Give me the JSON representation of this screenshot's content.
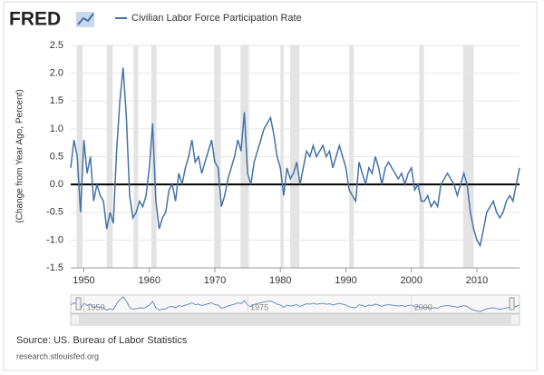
{
  "logo": "FRED",
  "source": "Source: US. Bureau of Labor Statistics",
  "site": "research.stlouisfed.org",
  "chart_data": {
    "type": "line",
    "y_label": "(Change from Year Ago, Percent)",
    "x": [
      1948,
      1948.5,
      1949,
      1949.5,
      1950,
      1950.5,
      1951,
      1951.5,
      1952,
      1952.5,
      1953,
      1953.5,
      1954,
      1954.5,
      1955,
      1955.5,
      1956,
      1956.5,
      1957,
      1957.5,
      1958,
      1958.5,
      1959,
      1959.5,
      1960,
      1960.5,
      1961,
      1961.5,
      1962,
      1962.5,
      1963,
      1963.5,
      1964,
      1964.5,
      1965,
      1965.5,
      1966,
      1966.5,
      1967,
      1967.5,
      1968,
      1968.5,
      1969,
      1969.5,
      1970,
      1970.5,
      1971,
      1971.5,
      1972,
      1972.5,
      1973,
      1973.5,
      1974,
      1974.5,
      1975,
      1975.5,
      1976,
      1976.5,
      1977,
      1977.5,
      1978,
      1978.5,
      1979,
      1979.5,
      1980,
      1980.5,
      1981,
      1981.5,
      1982,
      1982.5,
      1983,
      1983.5,
      1984,
      1984.5,
      1985,
      1985.5,
      1986,
      1986.5,
      1987,
      1987.5,
      1988,
      1988.5,
      1989,
      1989.5,
      1990,
      1990.5,
      1991,
      1991.5,
      1992,
      1992.5,
      1993,
      1993.5,
      1994,
      1994.5,
      1995,
      1995.5,
      1996,
      1996.5,
      1997,
      1997.5,
      1998,
      1998.5,
      1999,
      1999.5,
      2000,
      2000.5,
      2001,
      2001.5,
      2002,
      2002.5,
      2003,
      2003.5,
      2004,
      2004.5,
      2005,
      2005.5,
      2006,
      2006.5,
      2007,
      2007.5,
      2008,
      2008.5,
      2009,
      2009.5,
      2010,
      2010.5,
      2011,
      2011.5,
      2012,
      2012.5,
      2013,
      2013.5,
      2014,
      2014.5,
      2015,
      2015.5,
      2016,
      2016.5
    ],
    "series": [
      {
        "name": "Civilian Labor Force Participation Rate",
        "color": "#4572a7",
        "values": [
          0.3,
          0.8,
          0.5,
          -0.5,
          0.8,
          0.2,
          0.5,
          -0.3,
          0.0,
          -0.2,
          -0.3,
          -0.8,
          -0.5,
          -0.7,
          0.6,
          1.5,
          2.1,
          1.2,
          -0.2,
          -0.6,
          -0.5,
          -0.3,
          -0.4,
          -0.2,
          0.3,
          1.1,
          -0.3,
          -0.8,
          -0.6,
          -0.5,
          -0.1,
          0.0,
          -0.3,
          0.2,
          0.0,
          0.3,
          0.5,
          0.8,
          0.4,
          0.5,
          0.2,
          0.4,
          0.6,
          0.8,
          0.4,
          0.3,
          -0.4,
          -0.2,
          0.1,
          0.3,
          0.5,
          0.8,
          0.6,
          1.3,
          0.2,
          0.0,
          0.4,
          0.6,
          0.8,
          1.0,
          1.1,
          1.2,
          0.9,
          0.5,
          0.3,
          -0.2,
          0.3,
          0.1,
          0.2,
          0.4,
          0.0,
          0.3,
          0.6,
          0.5,
          0.7,
          0.5,
          0.6,
          0.7,
          0.5,
          0.6,
          0.3,
          0.5,
          0.7,
          0.5,
          0.3,
          -0.1,
          -0.2,
          -0.3,
          0.4,
          0.2,
          0.0,
          0.3,
          0.2,
          0.5,
          0.3,
          0.0,
          0.3,
          0.4,
          0.3,
          0.2,
          0.1,
          0.2,
          0.0,
          0.2,
          0.3,
          -0.1,
          0.0,
          -0.3,
          -0.3,
          -0.2,
          -0.4,
          -0.3,
          -0.4,
          0.0,
          0.1,
          0.2,
          0.1,
          0.0,
          -0.2,
          0.0,
          0.2,
          0.0,
          -0.5,
          -0.8,
          -1.0,
          -1.1,
          -0.8,
          -0.5,
          -0.4,
          -0.3,
          -0.5,
          -0.6,
          -0.5,
          -0.3,
          -0.2,
          -0.3,
          0.0,
          0.3
        ]
      }
    ],
    "recessions": [
      [
        1948.9,
        1949.8
      ],
      [
        1953.5,
        1954.4
      ],
      [
        1957.6,
        1958.3
      ],
      [
        1960.3,
        1961.1
      ],
      [
        1969.9,
        1970.9
      ],
      [
        1973.9,
        1975.2
      ],
      [
        1980.0,
        1980.5
      ],
      [
        1981.5,
        1982.9
      ],
      [
        1990.5,
        1991.2
      ],
      [
        2001.2,
        2001.9
      ],
      [
        2007.9,
        2009.5
      ]
    ],
    "xlim": [
      1948,
      2016.5
    ],
    "xticks": [
      1950,
      1960,
      1970,
      1980,
      1990,
      2000,
      2010
    ],
    "ylim": [
      -1.5,
      2.5
    ],
    "yticks": [
      -1.5,
      {
        "value": -1,
        "label": "-1.0"
      },
      -0.5,
      {
        "value": 0,
        "label": "0.0"
      },
      0.5,
      {
        "value": 1,
        "label": "1.0"
      },
      1.5,
      {
        "value": 2,
        "label": "2.0"
      },
      2.5
    ],
    "grid": true,
    "navigator_ticks": [
      1950,
      1975,
      2000
    ]
  }
}
